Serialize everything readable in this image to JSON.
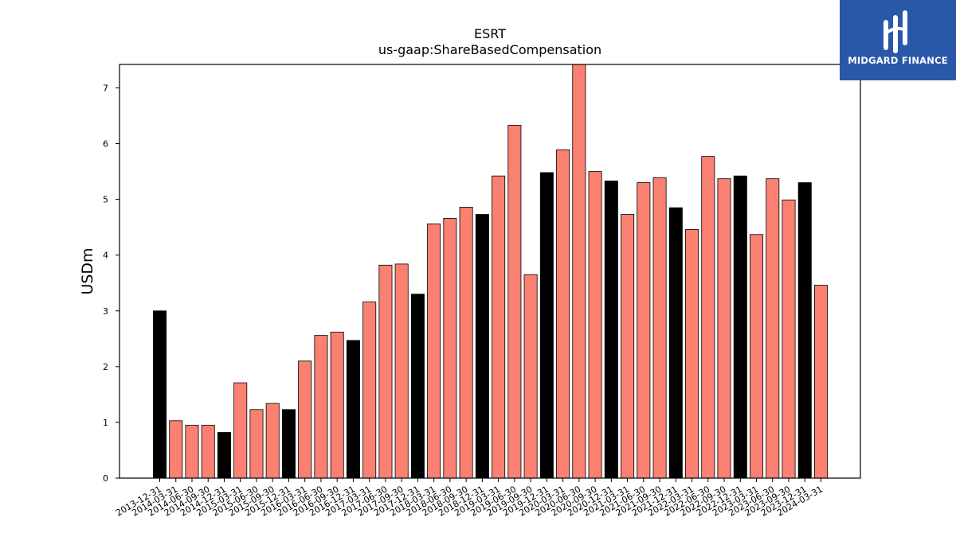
{
  "brand": {
    "name": "MIDGARD FINANCE",
    "bg_color": "#2a58a8",
    "icon": "midgard-logo-icon"
  },
  "chart_data": {
    "type": "bar",
    "title": "ESRT",
    "subtitle": "us-gaap:ShareBasedCompensation",
    "xlabel": "",
    "ylabel": "USDm",
    "ylim": [
      0,
      7.42
    ],
    "yticks": [
      0,
      1,
      2,
      3,
      4,
      5,
      6,
      7
    ],
    "grid": false,
    "colors": {
      "quarter": "#fa8072",
      "year_end": "#000000",
      "edge": "#000000"
    },
    "categories": [
      "2013-12-31",
      "2014-03-31",
      "2014-06-30",
      "2014-09-30",
      "2014-12-31",
      "2015-03-31",
      "2015-06-30",
      "2015-09-30",
      "2015-12-31",
      "2016-03-31",
      "2016-06-30",
      "2016-09-30",
      "2016-12-31",
      "2017-03-31",
      "2017-06-30",
      "2017-09-30",
      "2017-12-31",
      "2018-03-31",
      "2018-06-30",
      "2018-09-30",
      "2018-12-31",
      "2019-03-31",
      "2019-06-30",
      "2019-09-30",
      "2019-12-31",
      "2020-03-31",
      "2020-06-30",
      "2020-09-30",
      "2020-12-31",
      "2021-03-31",
      "2021-06-30",
      "2021-09-30",
      "2021-12-31",
      "2022-03-31",
      "2022-06-30",
      "2022-09-30",
      "2022-12-31",
      "2023-03-31",
      "2023-06-30",
      "2023-09-30",
      "2023-12-31",
      "2024-03-31"
    ],
    "values": [
      3.0,
      1.03,
      0.95,
      0.95,
      0.82,
      1.71,
      1.23,
      1.34,
      1.23,
      2.1,
      2.56,
      2.62,
      2.47,
      3.16,
      3.82,
      3.84,
      3.3,
      4.56,
      4.66,
      4.86,
      4.73,
      5.42,
      6.33,
      3.65,
      5.48,
      5.89,
      7.45,
      5.5,
      5.33,
      4.73,
      5.3,
      5.39,
      4.85,
      4.46,
      5.77,
      5.37,
      5.42,
      4.37,
      5.37,
      4.99,
      5.3,
      3.46
    ],
    "year_end": [
      true,
      false,
      false,
      false,
      true,
      false,
      false,
      false,
      true,
      false,
      false,
      false,
      true,
      false,
      false,
      false,
      true,
      false,
      false,
      false,
      true,
      false,
      false,
      false,
      true,
      false,
      false,
      false,
      true,
      false,
      false,
      false,
      true,
      false,
      false,
      false,
      true,
      false,
      false,
      false,
      true,
      false
    ]
  }
}
